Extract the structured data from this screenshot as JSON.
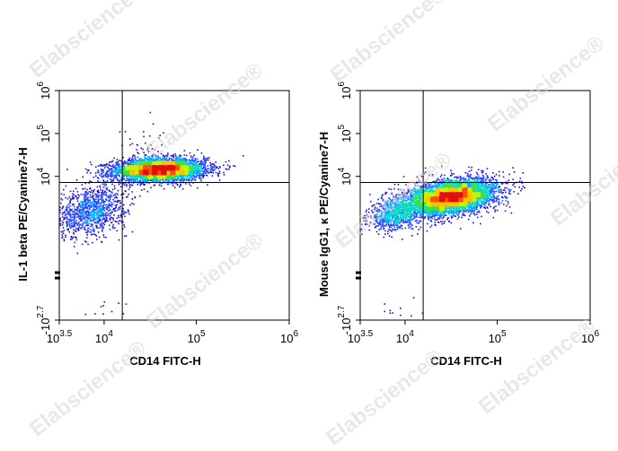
{
  "watermark": "Elabscience®",
  "chart_data": [
    {
      "type": "scatter",
      "subtype": "flow-cytometry-density-dot-plot",
      "title": "",
      "xlabel": "CD14 FITC-H",
      "ylabel": "IL-1 beta PE/Cyanine7-H",
      "x_scale": "biexponential",
      "y_scale": "biexponential",
      "x_ticks": [
        {
          "value": 3162,
          "base": "10",
          "exp": "3.5"
        },
        {
          "value": 10000,
          "base": "10",
          "exp": "4"
        },
        {
          "value": 100000,
          "base": "10",
          "exp": "5"
        },
        {
          "value": 1000000,
          "base": "10",
          "exp": "6"
        }
      ],
      "y_ticks": [
        {
          "value": -501,
          "base": "-10",
          "exp": "2.7"
        },
        {
          "value": 10000,
          "base": "10",
          "exp": "4"
        },
        {
          "value": 100000,
          "base": "10",
          "exp": "5"
        },
        {
          "value": 1000000,
          "base": "10",
          "exp": "6"
        }
      ],
      "quadrant_gates": {
        "x": 15800,
        "y": 7200
      },
      "populations": [
        {
          "x_center": 40000,
          "y_center": 14000,
          "x_spread": 0.25,
          "y_spread": 0.13,
          "events": 4200,
          "tilt": 0.05
        },
        {
          "x_center": 7000,
          "y_center": 1500,
          "x_spread": 0.2,
          "y_spread": 0.3,
          "events": 1100,
          "tilt": 0.5
        },
        {
          "x_center": 30000,
          "y_center": 40000,
          "x_spread": 0.15,
          "y_spread": 0.3,
          "events": 60,
          "tilt": 0.0
        }
      ],
      "grid": false,
      "legend": "none"
    },
    {
      "type": "scatter",
      "subtype": "flow-cytometry-density-dot-plot",
      "title": "",
      "xlabel": "CD14 FITC-H",
      "ylabel": "Mouse IgG1, κ PE/Cyanine7-H",
      "x_scale": "biexponential",
      "y_scale": "biexponential",
      "x_ticks": [
        {
          "value": 3162,
          "base": "10",
          "exp": "3.5"
        },
        {
          "value": 10000,
          "base": "10",
          "exp": "4"
        },
        {
          "value": 100000,
          "base": "10",
          "exp": "5"
        },
        {
          "value": 1000000,
          "base": "10",
          "exp": "6"
        }
      ],
      "y_ticks": [
        {
          "value": -501,
          "base": "-10",
          "exp": "2.7"
        },
        {
          "value": 10000,
          "base": "10",
          "exp": "4"
        },
        {
          "value": 100000,
          "base": "10",
          "exp": "5"
        },
        {
          "value": 1000000,
          "base": "10",
          "exp": "6"
        }
      ],
      "quadrant_gates": {
        "x": 15800,
        "y": 7200
      },
      "populations": [
        {
          "x_center": 32000,
          "y_center": 3200,
          "x_spread": 0.24,
          "y_spread": 0.2,
          "events": 4800,
          "tilt": 0.3
        },
        {
          "x_center": 8000,
          "y_center": 1300,
          "x_spread": 0.15,
          "y_spread": 0.2,
          "events": 800,
          "tilt": 0.4
        }
      ],
      "grid": false,
      "legend": "none"
    }
  ]
}
